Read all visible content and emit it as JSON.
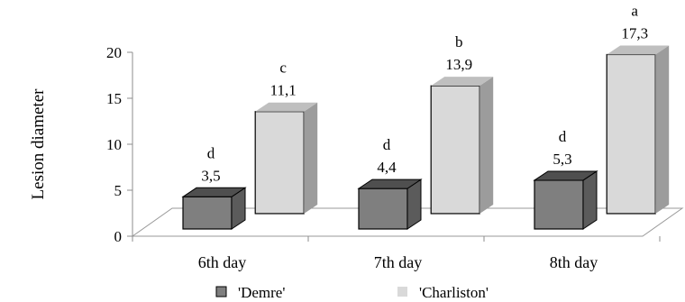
{
  "chart_data": {
    "type": "bar",
    "style": "3d-clustered-column",
    "categories": [
      "6th day",
      "7th day",
      "8th day"
    ],
    "series": [
      {
        "name": "'Demre'",
        "values": [
          3.5,
          4.4,
          5.3
        ],
        "value_labels": [
          "3,5",
          "4,4",
          "5,3"
        ],
        "letters": [
          "d",
          "d",
          "d"
        ],
        "color": "#7f7f7f"
      },
      {
        "name": "'Charliston'",
        "values": [
          11.1,
          13.9,
          17.3
        ],
        "value_labels": [
          "11,1",
          "13,9",
          "17,3"
        ],
        "letters": [
          "c",
          "b",
          "a"
        ],
        "color": "#d9d9d9"
      }
    ],
    "title": "",
    "xlabel": "",
    "ylabel": "Lesion diameter",
    "ylim": [
      0,
      20
    ],
    "yticks": [
      {
        "value": 0,
        "label": "0"
      },
      {
        "value": 5,
        "label": "5"
      },
      {
        "value": 10,
        "label": "10"
      },
      {
        "value": 15,
        "label": "15"
      },
      {
        "value": 20,
        "label": "20"
      }
    ],
    "grid": false,
    "legend_position": "bottom"
  }
}
